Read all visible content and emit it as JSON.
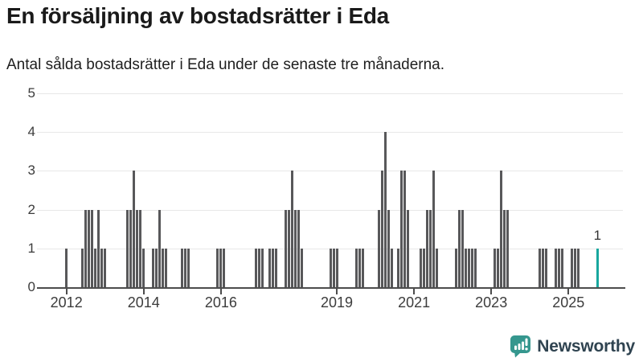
{
  "header": {
    "title": "En försäljning av bostadsrätter i Eda",
    "subtitle": "Antal sålda bostadsrätter i Eda under de senaste tre månaderna."
  },
  "chart_data": {
    "type": "bar",
    "title": "En försäljning av bostadsrätter i Eda",
    "subtitle": "Antal sålda bostadsrätter i Eda under de senaste tre månaderna.",
    "ylabel": "",
    "xlabel": "",
    "ylim": [
      0,
      5
    ],
    "y_ticks": [
      0,
      1,
      2,
      3,
      4,
      5
    ],
    "x_tick_labels": [
      "2012",
      "2014",
      "2016",
      "2019",
      "2021",
      "2023",
      "2025"
    ],
    "x_range_months": [
      "2012-01",
      "2025-10"
    ],
    "grid": true,
    "legend": false,
    "bar_color": "#58585a",
    "highlight_color": "#17a79e",
    "points": [
      [
        "2012-01",
        1
      ],
      [
        "2012-06",
        1
      ],
      [
        "2012-07",
        2
      ],
      [
        "2012-08",
        2
      ],
      [
        "2012-09",
        2
      ],
      [
        "2012-10",
        1
      ],
      [
        "2012-11",
        2
      ],
      [
        "2012-12",
        1
      ],
      [
        "2013-01",
        1
      ],
      [
        "2013-08",
        2
      ],
      [
        "2013-09",
        2
      ],
      [
        "2013-10",
        3
      ],
      [
        "2013-11",
        2
      ],
      [
        "2013-12",
        2
      ],
      [
        "2014-01",
        1
      ],
      [
        "2014-04",
        1
      ],
      [
        "2014-05",
        1
      ],
      [
        "2014-06",
        2
      ],
      [
        "2014-07",
        1
      ],
      [
        "2014-08",
        1
      ],
      [
        "2015-01",
        1
      ],
      [
        "2015-02",
        1
      ],
      [
        "2015-03",
        1
      ],
      [
        "2015-12",
        1
      ],
      [
        "2016-01",
        1
      ],
      [
        "2016-02",
        1
      ],
      [
        "2016-12",
        1
      ],
      [
        "2017-01",
        1
      ],
      [
        "2017-02",
        1
      ],
      [
        "2017-04",
        1
      ],
      [
        "2017-05",
        1
      ],
      [
        "2017-06",
        1
      ],
      [
        "2017-09",
        2
      ],
      [
        "2017-10",
        2
      ],
      [
        "2017-11",
        3
      ],
      [
        "2017-12",
        2
      ],
      [
        "2018-01",
        2
      ],
      [
        "2018-02",
        1
      ],
      [
        "2018-11",
        1
      ],
      [
        "2018-12",
        1
      ],
      [
        "2019-01",
        1
      ],
      [
        "2019-07",
        1
      ],
      [
        "2019-08",
        1
      ],
      [
        "2019-09",
        1
      ],
      [
        "2020-02",
        2
      ],
      [
        "2020-03",
        3
      ],
      [
        "2020-04",
        4
      ],
      [
        "2020-05",
        2
      ],
      [
        "2020-06",
        1
      ],
      [
        "2020-08",
        1
      ],
      [
        "2020-09",
        3
      ],
      [
        "2020-10",
        3
      ],
      [
        "2020-11",
        2
      ],
      [
        "2021-03",
        1
      ],
      [
        "2021-04",
        1
      ],
      [
        "2021-05",
        2
      ],
      [
        "2021-06",
        2
      ],
      [
        "2021-07",
        3
      ],
      [
        "2021-08",
        1
      ],
      [
        "2022-02",
        1
      ],
      [
        "2022-03",
        2
      ],
      [
        "2022-04",
        2
      ],
      [
        "2022-05",
        1
      ],
      [
        "2022-06",
        1
      ],
      [
        "2022-07",
        1
      ],
      [
        "2022-08",
        1
      ],
      [
        "2023-02",
        1
      ],
      [
        "2023-03",
        1
      ],
      [
        "2023-04",
        3
      ],
      [
        "2023-05",
        2
      ],
      [
        "2023-06",
        2
      ],
      [
        "2024-04",
        1
      ],
      [
        "2024-05",
        1
      ],
      [
        "2024-06",
        1
      ],
      [
        "2024-09",
        1
      ],
      [
        "2024-10",
        1
      ],
      [
        "2024-11",
        1
      ],
      [
        "2025-02",
        1
      ],
      [
        "2025-03",
        1
      ],
      [
        "2025-04",
        1
      ],
      [
        "2025-10",
        1
      ]
    ],
    "highlight": {
      "month": "2025-10",
      "value": 1,
      "label": "1"
    }
  },
  "branding": {
    "name": "Newsworthy",
    "icon": "newsworthy-bar-chart-speech-bubble-icon",
    "icon_color": "#35978e",
    "text_color": "#2f4350"
  }
}
